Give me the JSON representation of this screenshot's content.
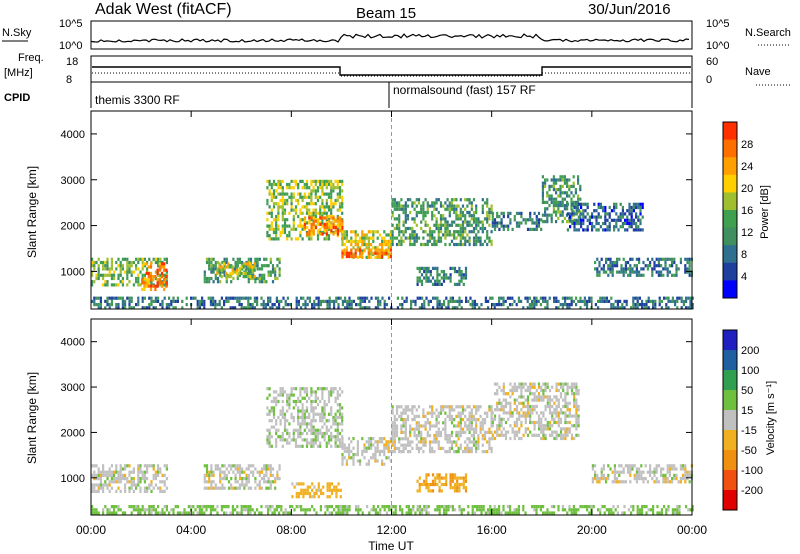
{
  "header": {
    "station": "Adak West (fitACF)",
    "beam": "Beam 15",
    "date": "30/Jun/2016"
  },
  "strips": {
    "nsky_label": "N.Sky",
    "nsky_ticks": [
      "10^5",
      "10^0"
    ],
    "nsearch_label": "N.Search",
    "nsearch_ticks": [
      "10^5",
      "10^0"
    ],
    "freq_label": "Freq.",
    "freq_unit": "[MHz]",
    "freq_ticks": [
      "18",
      "8"
    ],
    "nave_label": "Nave",
    "nave_ticks": [
      "60",
      "0"
    ],
    "cpid_label": "CPID",
    "cpid_segments": [
      "themis 3300 RF",
      "normalsound (fast) 157 RF"
    ]
  },
  "colors": {
    "power": [
      "#0000ff",
      "#1f3f9f",
      "#2f6f8f",
      "#3f8f5f",
      "#3fa04f",
      "#9fbf2f",
      "#ffcf00",
      "#ff9f00",
      "#ff6f00",
      "#ff2f00"
    ],
    "velocity": [
      "#2020c0",
      "#205fa0",
      "#30a050",
      "#70c040",
      "#c0c0c0",
      "#f0b020",
      "#f09010",
      "#f05010",
      "#e00000"
    ]
  },
  "chart_data": [
    {
      "type": "heatmap",
      "panel": "power",
      "xlabel": "Time UT",
      "ylabel": "Slant Range [km]",
      "x_ticks": [
        "00:00",
        "04:00",
        "08:00",
        "12:00",
        "16:00",
        "20:00",
        "00:00"
      ],
      "xlim_hours": [
        0,
        24
      ],
      "y_ticks": [
        "1000",
        "2000",
        "3000",
        "4000"
      ],
      "ylim_km": [
        180,
        4500
      ],
      "colorbar_label": "Power [dB]",
      "colorbar_ticks": [
        "4",
        "8",
        "12",
        "16",
        "20",
        "24",
        "28"
      ],
      "colorbar_range": [
        0,
        30
      ],
      "regions": [
        {
          "t0": 0.0,
          "t1": 3.0,
          "r0": 700,
          "r1": 1300,
          "value": 14
        },
        {
          "t0": 2.0,
          "t1": 3.0,
          "r0": 600,
          "r1": 1200,
          "value": 24
        },
        {
          "t0": 4.5,
          "t1": 7.5,
          "r0": 800,
          "r1": 1300,
          "value": 12
        },
        {
          "t0": 5.0,
          "t1": 6.5,
          "r0": 900,
          "r1": 1200,
          "value": 18
        },
        {
          "t0": 7.0,
          "t1": 10.0,
          "r0": 1700,
          "r1": 3000,
          "value": 16
        },
        {
          "t0": 8.5,
          "t1": 10.0,
          "r0": 1800,
          "r1": 2200,
          "value": 24
        },
        {
          "t0": 10.0,
          "t1": 12.0,
          "r0": 1300,
          "r1": 1900,
          "value": 18
        },
        {
          "t0": 10.0,
          "t1": 12.0,
          "r0": 1300,
          "r1": 1500,
          "value": 26
        },
        {
          "t0": 12.0,
          "t1": 16.0,
          "r0": 1600,
          "r1": 2600,
          "value": 12
        },
        {
          "t0": 13.0,
          "t1": 15.0,
          "r0": 700,
          "r1": 1100,
          "value": 10
        },
        {
          "t0": 16.0,
          "t1": 18.0,
          "r0": 1900,
          "r1": 2300,
          "value": 9
        },
        {
          "t0": 18.0,
          "t1": 19.5,
          "r0": 2100,
          "r1": 3100,
          "value": 11
        },
        {
          "t0": 19.0,
          "t1": 22.0,
          "r0": 1900,
          "r1": 2500,
          "value": 7
        },
        {
          "t0": 20.0,
          "t1": 24.0,
          "r0": 900,
          "r1": 1300,
          "value": 9
        },
        {
          "t0": 0.0,
          "t1": 24.0,
          "r0": 200,
          "r1": 450,
          "value": 8
        }
      ]
    },
    {
      "type": "heatmap",
      "panel": "velocity",
      "xlabel": "Time UT",
      "ylabel": "Slant Range [km]",
      "x_ticks": [
        "00:00",
        "04:00",
        "08:00",
        "12:00",
        "16:00",
        "20:00",
        "00:00"
      ],
      "xlim_hours": [
        0,
        24
      ],
      "y_ticks": [
        "1000",
        "2000",
        "3000",
        "4000"
      ],
      "ylim_km": [
        180,
        4500
      ],
      "colorbar_label": "Velocity [m s⁻¹]",
      "colorbar_ticks": [
        "200",
        "100",
        "50",
        "15",
        "-15",
        "-50",
        "-100",
        "-200"
      ],
      "colorbar_range": [
        -250,
        250
      ],
      "regions": [
        {
          "t0": 0.0,
          "t1": 3.0,
          "r0": 700,
          "r1": 1300,
          "value": 0
        },
        {
          "t0": 4.5,
          "t1": 7.5,
          "r0": 800,
          "r1": 1300,
          "value": 0
        },
        {
          "t0": 7.0,
          "t1": 10.0,
          "r0": 1700,
          "r1": 3000,
          "value": 5
        },
        {
          "t0": 10.0,
          "t1": 12.0,
          "r0": 1300,
          "r1": 1900,
          "value": 0
        },
        {
          "t0": 12.0,
          "t1": 16.0,
          "r0": 1600,
          "r1": 2600,
          "value": 0
        },
        {
          "t0": 13.0,
          "t1": 15.0,
          "r0": 700,
          "r1": 1100,
          "value": -40
        },
        {
          "t0": 8.0,
          "t1": 10.0,
          "r0": 600,
          "r1": 900,
          "value": -30
        },
        {
          "t0": 16.0,
          "t1": 19.5,
          "r0": 1900,
          "r1": 3100,
          "value": 0
        },
        {
          "t0": 20.0,
          "t1": 24.0,
          "r0": 900,
          "r1": 1300,
          "value": 0
        },
        {
          "t0": 0.0,
          "t1": 24.0,
          "r0": 200,
          "r1": 400,
          "value": 30
        }
      ]
    }
  ]
}
